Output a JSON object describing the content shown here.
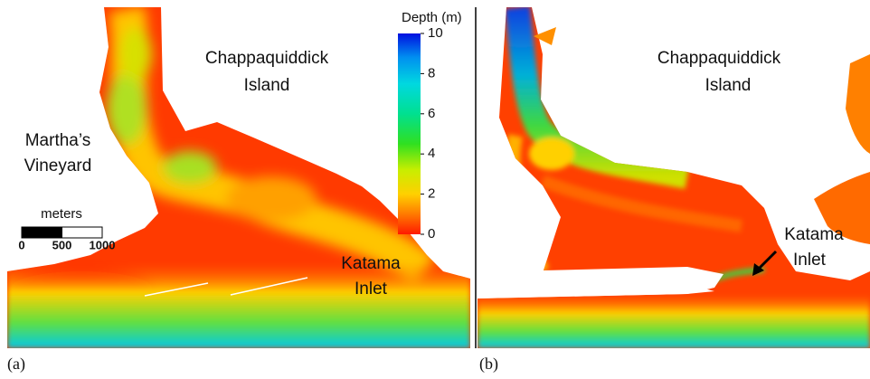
{
  "panels": [
    {
      "label": "(a)",
      "annotations": [
        {
          "lines": [
            "Chappaquiddick",
            "Island"
          ]
        },
        {
          "lines": [
            "Martha’s",
            "Vineyard"
          ]
        },
        {
          "lines": [
            "Katama",
            "Inlet"
          ]
        }
      ]
    },
    {
      "label": "(b)",
      "annotations": [
        {
          "lines": [
            "Chappaquiddick",
            "Island"
          ]
        },
        {
          "lines": [
            "Katama",
            "Inlet"
          ]
        }
      ]
    }
  ],
  "colorbar": {
    "title": "Depth (m)",
    "lim": [
      0,
      10
    ],
    "ticks": [
      0,
      2,
      4,
      6,
      8,
      10
    ]
  },
  "scale_bar": {
    "title": "meters",
    "lim": [
      0,
      1000
    ],
    "ticks": [
      0,
      500,
      1000
    ]
  }
}
